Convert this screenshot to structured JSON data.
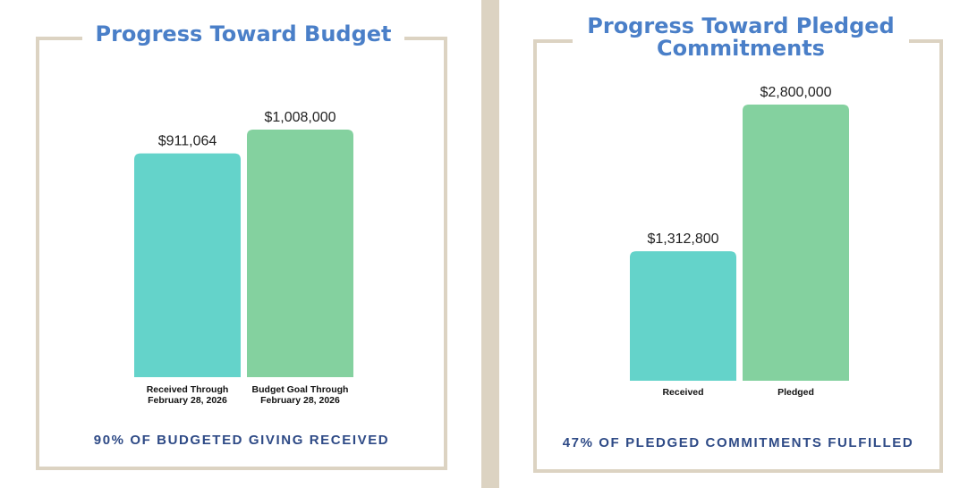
{
  "colors": {
    "received": "#64d3ca",
    "goal": "#84d19f",
    "title": "#4a7fc8",
    "summary": "#2e4a86",
    "frame": "#dcd3c2"
  },
  "chart_data": [
    {
      "type": "bar",
      "title": "Progress Toward Budget",
      "categories": [
        "Received Through\nFebruary 28, 2026",
        "Budget Goal Through\nFebruary 28, 2026"
      ],
      "values": [
        911064,
        1008000
      ],
      "data_labels": [
        "$911,064",
        "$1,008,000"
      ],
      "ylim": [
        0,
        1008000
      ],
      "grid": false,
      "xlabel": "",
      "ylabel": "",
      "summary": "90% OF BUDGETED GIVING RECEIVED"
    },
    {
      "type": "bar",
      "title": "Progress Toward Pledged Commitments",
      "categories": [
        "Received",
        "Pledged"
      ],
      "values": [
        1312800,
        2800000
      ],
      "data_labels": [
        "$1,312,800",
        "$2,800,000"
      ],
      "ylim": [
        0,
        2800000
      ],
      "grid": false,
      "xlabel": "",
      "ylabel": "",
      "summary": "47% OF PLEDGED COMMITMENTS FULFILLED"
    }
  ]
}
